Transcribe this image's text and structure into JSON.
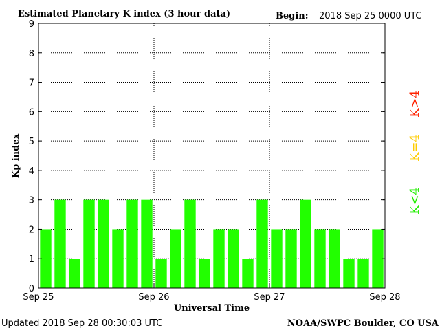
{
  "header": {
    "title": "Estimated Planetary K index (3 hour data)",
    "begin_label": "Begin:",
    "begin_value": "2018 Sep 25 0000 UTC"
  },
  "footer": {
    "updated": "Updated 2018 Sep 28 00:30:03 UTC",
    "source": "NOAA/SWPC Boulder, CO USA"
  },
  "legend": {
    "high": "K>4",
    "equal": "K=4",
    "low": "K<4",
    "high_color": "#ff2200",
    "equal_color": "#ffcc00",
    "low_color": "#22ee00"
  },
  "chart_data": {
    "type": "bar",
    "title": "Estimated Planetary K index (3 hour data)",
    "xlabel": "Universal Time",
    "ylabel": "Kp index",
    "ylim": [
      0,
      9
    ],
    "yticks": [
      "0",
      "1",
      "2",
      "3",
      "4",
      "5",
      "6",
      "7",
      "8",
      "9"
    ],
    "xticks": [
      "Sep 25",
      "Sep 26",
      "Sep 27",
      "Sep 28"
    ],
    "grid": true,
    "bar_color": "#22ff00",
    "values": [
      2,
      3,
      1,
      3,
      3,
      2,
      3,
      3,
      1,
      2,
      3,
      1,
      2,
      2,
      1,
      3,
      2,
      2,
      3,
      2,
      2,
      1,
      1,
      2
    ]
  }
}
